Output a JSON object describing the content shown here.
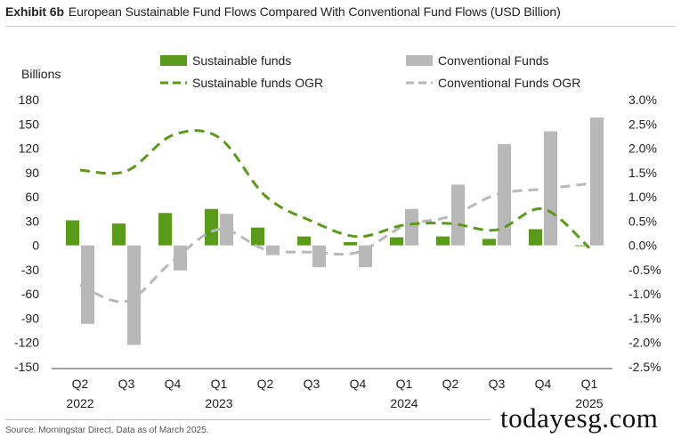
{
  "header": {
    "exhibit": "Exhibit 6b",
    "title": "European Sustainable Fund Flows Compared With Conventional Fund Flows (USD Billion)"
  },
  "footer": {
    "source": "Source: Morningstar Direct. Data as of March 2025.",
    "watermark": "todayesg.com"
  },
  "chart_data": {
    "type": "bar",
    "ylabel": "Billions",
    "ylim": [
      -150,
      180
    ],
    "yticks": [
      180,
      150,
      120,
      90,
      60,
      30,
      0,
      -30,
      -60,
      -90,
      -120,
      -150
    ],
    "y2lim": [
      -2.5,
      3.0
    ],
    "y2ticks": [
      "3.0%",
      "2.5%",
      "2.0%",
      "1.5%",
      "1.0%",
      "0.5%",
      "0.0%",
      "-0.5%",
      "-1.0%",
      "-1.5%",
      "-2.0%",
      "-2.5%"
    ],
    "y2values": [
      3.0,
      2.5,
      2.0,
      1.5,
      1.0,
      0.5,
      0.0,
      -0.5,
      -1.0,
      -1.5,
      -2.0,
      -2.5
    ],
    "categories": [
      "Q2",
      "Q3",
      "Q4",
      "Q1",
      "Q2",
      "Q3",
      "Q4",
      "Q1",
      "Q2",
      "Q3",
      "Q4",
      "Q1"
    ],
    "year_labels": [
      {
        "index": 0,
        "label": "2022"
      },
      {
        "index": 3,
        "label": "2023"
      },
      {
        "index": 7,
        "label": "2024"
      },
      {
        "index": 11,
        "label": "2025"
      }
    ],
    "grid": false,
    "legend": "top",
    "series": [
      {
        "name": "Sustainable funds",
        "kind": "bar",
        "axis": "left",
        "color": "#5a9a1a",
        "values": [
          31,
          27,
          40,
          45,
          22,
          11,
          4,
          10,
          11,
          8,
          20,
          -1
        ]
      },
      {
        "name": "Conventional Funds",
        "kind": "bar",
        "axis": "left",
        "color": "#b8b8b8",
        "values": [
          -97,
          -123,
          -31,
          39,
          -12,
          -27,
          -27,
          45,
          75,
          125,
          141,
          158
        ]
      },
      {
        "name": "Sustainable funds OGR",
        "kind": "line",
        "axis": "right",
        "color": "#5a9a1a",
        "dash": "dashed",
        "values": [
          1.55,
          1.53,
          2.27,
          2.22,
          1.02,
          0.5,
          0.18,
          0.42,
          0.45,
          0.32,
          0.75,
          -0.05
        ]
      },
      {
        "name": "Conventional Funds OGR",
        "kind": "line",
        "axis": "right",
        "color": "#b8b8b8",
        "dash": "dashed",
        "values": [
          -0.82,
          -1.15,
          -0.32,
          0.33,
          -0.08,
          -0.14,
          -0.14,
          0.4,
          0.6,
          1.05,
          1.16,
          1.27
        ]
      }
    ]
  }
}
